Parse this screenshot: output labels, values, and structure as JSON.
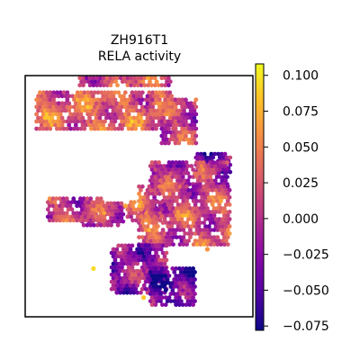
{
  "chart_data": {
    "type": "scatter",
    "title": "ZH916T1",
    "subtitle": "RELA activity",
    "xlabel": "",
    "ylabel": "",
    "grid": false,
    "axes_ticks": false,
    "colormap": "plasma",
    "colormap_stops": [
      "#0d0887",
      "#5302a3",
      "#8b0aa5",
      "#b83289",
      "#db5c68",
      "#f48849",
      "#febd2a",
      "#f0f921"
    ],
    "colorbar": {
      "vmin": -0.078,
      "vmax": 0.108,
      "ticks": [
        0.1,
        0.075,
        0.05,
        0.025,
        0.0,
        -0.025,
        -0.05,
        -0.075
      ],
      "tick_labels": [
        "0.100",
        "0.075",
        "0.050",
        "0.025",
        "0.000",
        "−0.025",
        "−0.050",
        "−0.075"
      ]
    },
    "xlim": [
      0,
      100
    ],
    "ylim": [
      0,
      100
    ],
    "tissue_regions": [
      {
        "x": 24,
        "y": 96,
        "w": 40,
        "h": 4,
        "level": 0.02
      },
      {
        "x": 5,
        "y": 78,
        "w": 60,
        "h": 15,
        "level": 0.03
      },
      {
        "x": 60,
        "y": 72,
        "w": 15,
        "h": 18,
        "level": 0.01
      },
      {
        "x": 75,
        "y": 60,
        "w": 15,
        "h": 8,
        "level": -0.04
      },
      {
        "x": 55,
        "y": 55,
        "w": 34,
        "h": 10,
        "level": 0.0
      },
      {
        "x": 50,
        "y": 30,
        "w": 40,
        "h": 25,
        "level": 0.015
      },
      {
        "x": 45,
        "y": 40,
        "w": 15,
        "h": 8,
        "level": 0.035
      },
      {
        "x": 25,
        "y": 38,
        "w": 18,
        "h": 10,
        "level": 0.0
      },
      {
        "x": 10,
        "y": 40,
        "w": 25,
        "h": 10,
        "level": 0.01
      },
      {
        "x": 38,
        "y": 10,
        "w": 24,
        "h": 20,
        "level": -0.02
      },
      {
        "x": 55,
        "y": 5,
        "w": 20,
        "h": 15,
        "level": -0.045
      }
    ],
    "hot_spots": [
      {
        "x": 30,
        "y": 20,
        "value": 0.095
      },
      {
        "x": 52,
        "y": 8,
        "value": 0.085
      },
      {
        "x": 80,
        "y": 28,
        "value": 0.06
      },
      {
        "x": 44,
        "y": 46,
        "value": 0.07
      }
    ]
  }
}
